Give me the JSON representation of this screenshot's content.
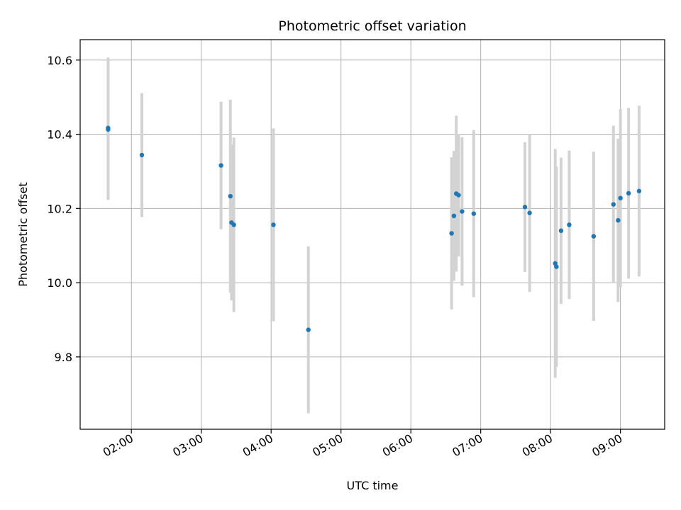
{
  "chart_data": {
    "type": "scatter",
    "title": "Photometric offset variation",
    "xlabel": "UTC time",
    "ylabel": "Photometric offset",
    "x_unit": "UTC time (HH:MM)",
    "xlim": [
      "01:16",
      "09:38"
    ],
    "ylim": [
      9.605,
      10.655
    ],
    "x_ticks": [
      "02:00",
      "03:00",
      "04:00",
      "05:00",
      "06:00",
      "07:00",
      "08:00",
      "09:00"
    ],
    "y_ticks": [
      9.8,
      10.0,
      10.2,
      10.4,
      10.6
    ],
    "y_tick_labels": [
      "9.8",
      "10.0",
      "10.2",
      "10.4",
      "10.6"
    ],
    "grid": true,
    "point_color": "#1f77b4",
    "errorbar_color": "#d3d3d3",
    "points": [
      {
        "x": "01:40",
        "y": 10.417,
        "err": 0.19
      },
      {
        "x": "01:40",
        "y": 10.413,
        "err": 0.19
      },
      {
        "x": "02:09",
        "y": 10.344,
        "err": 0.167
      },
      {
        "x": "03:17",
        "y": 10.316,
        "err": 0.172
      },
      {
        "x": "03:25",
        "y": 10.233,
        "err": 0.26
      },
      {
        "x": "03:26",
        "y": 10.162,
        "err": 0.21
      },
      {
        "x": "03:28",
        "y": 10.156,
        "err": 0.235
      },
      {
        "x": "04:02",
        "y": 10.156,
        "err": 0.26
      },
      {
        "x": "04:32",
        "y": 9.873,
        "err": 0.225
      },
      {
        "x": "06:35",
        "y": 10.133,
        "err": 0.205
      },
      {
        "x": "06:37",
        "y": 10.18,
        "err": 0.175
      },
      {
        "x": "06:39",
        "y": 10.24,
        "err": 0.21
      },
      {
        "x": "06:41",
        "y": 10.236,
        "err": 0.165
      },
      {
        "x": "06:44",
        "y": 10.192,
        "err": 0.2
      },
      {
        "x": "06:54",
        "y": 10.186,
        "err": 0.225
      },
      {
        "x": "07:38",
        "y": 10.204,
        "err": 0.175
      },
      {
        "x": "07:42",
        "y": 10.188,
        "err": 0.213
      },
      {
        "x": "08:04",
        "y": 10.052,
        "err": 0.308
      },
      {
        "x": "08:05",
        "y": 10.043,
        "err": 0.27
      },
      {
        "x": "08:09",
        "y": 10.14,
        "err": 0.197
      },
      {
        "x": "08:16",
        "y": 10.156,
        "err": 0.2
      },
      {
        "x": "08:37",
        "y": 10.125,
        "err": 0.228
      },
      {
        "x": "08:54",
        "y": 10.211,
        "err": 0.212
      },
      {
        "x": "08:58",
        "y": 10.168,
        "err": 0.22
      },
      {
        "x": "09:00",
        "y": 10.228,
        "err": 0.24
      },
      {
        "x": "09:07",
        "y": 10.241,
        "err": 0.23
      },
      {
        "x": "09:16",
        "y": 10.247,
        "err": 0.23
      }
    ]
  }
}
